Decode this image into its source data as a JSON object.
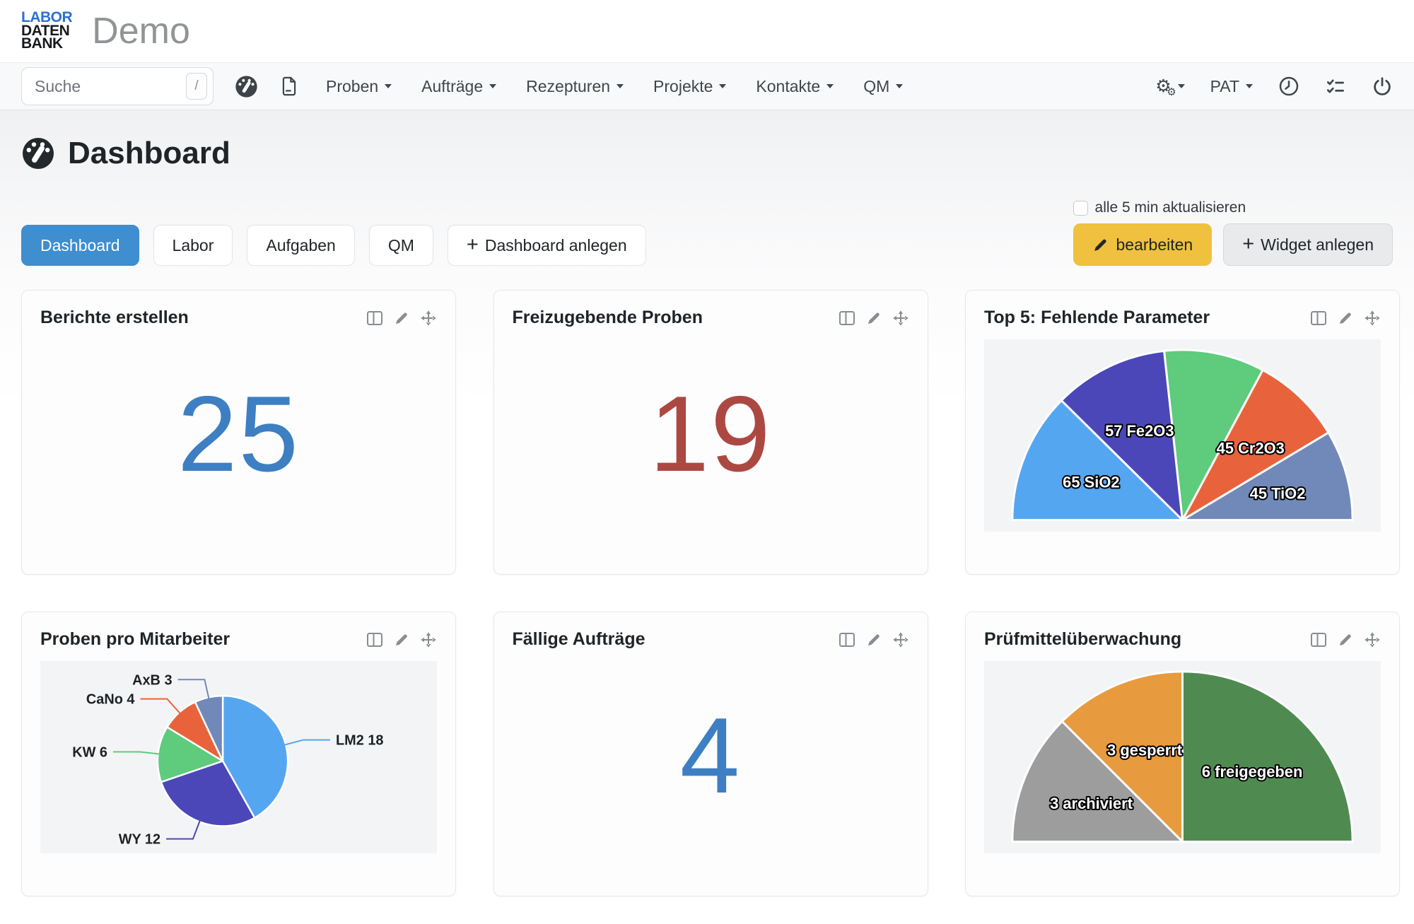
{
  "brand": {
    "line1": "LABOR",
    "line2": "DATEN",
    "line3": "BANK",
    "app_title": "Demo"
  },
  "icons": {
    "plus": "+",
    "gear": "⚙",
    "search_shortcut_key": "/"
  },
  "navbar": {
    "search": {
      "placeholder": "Suche",
      "shortcut": "/"
    },
    "menus": [
      {
        "label": "Proben"
      },
      {
        "label": "Aufträge"
      },
      {
        "label": "Rezepturen"
      },
      {
        "label": "Projekte"
      },
      {
        "label": "Kontakte"
      },
      {
        "label": "QM"
      }
    ],
    "user": "PAT"
  },
  "page": {
    "title": "Dashboard",
    "auto_refresh_label": "alle 5 min aktualisieren",
    "tabs": [
      {
        "label": "Dashboard",
        "active": true
      },
      {
        "label": "Labor",
        "active": false
      },
      {
        "label": "Aufgaben",
        "active": false
      },
      {
        "label": "QM",
        "active": false
      }
    ],
    "add_dashboard_label": "Dashboard anlegen",
    "actions": {
      "edit_label": "bearbeiten",
      "add_widget_label": "Widget anlegen"
    }
  },
  "widgets": [
    {
      "title": "Berichte erstellen",
      "type": "number",
      "value": "25",
      "color": "#3d7fc2"
    },
    {
      "title": "Freizugebende Proben",
      "type": "number",
      "value": "19",
      "color": "#ac4842"
    },
    {
      "title": "Top 5: Fehlende Parameter",
      "type": "chart",
      "chart": {
        "type": "pie",
        "shape": "half",
        "legend": "none",
        "segments": [
          {
            "label": "65 SiO2",
            "value": 65,
            "color": "#55a6f0"
          },
          {
            "label": "57 Fe2O3",
            "value": 57,
            "color": "#4b47b9"
          },
          {
            "label": "",
            "value": 50,
            "color": "#5ecb7d"
          },
          {
            "label": "45 Cr2O3",
            "value": 45,
            "color": "#e8633c"
          },
          {
            "label": "45 TiO2",
            "value": 45,
            "color": "#7189b8"
          }
        ]
      }
    },
    {
      "title": "Proben pro Mitarbeiter",
      "type": "chart",
      "chart": {
        "type": "pie",
        "shape": "full",
        "legend": "outside-leader-lines",
        "segments": [
          {
            "label": "LM2 18",
            "value": 18,
            "color": "#55a6f0"
          },
          {
            "label": "WY 12",
            "value": 12,
            "color": "#4b47b9"
          },
          {
            "label": "KW 6",
            "value": 6,
            "color": "#5ecb7d"
          },
          {
            "label": "CaNo 4",
            "value": 4,
            "color": "#e8633c"
          },
          {
            "label": "AxB 3",
            "value": 3,
            "color": "#7189b8"
          }
        ]
      }
    },
    {
      "title": "Fällige Aufträge",
      "type": "number",
      "value": "4",
      "color": "#3d7fc2"
    },
    {
      "title": "Prüfmittelüberwachung",
      "type": "chart",
      "chart": {
        "type": "pie",
        "shape": "half",
        "legend": "none",
        "segments": [
          {
            "label": "3 archiviert",
            "value": 3,
            "color": "#9d9d9d"
          },
          {
            "label": "3 gesperrt",
            "value": 3,
            "color": "#e89b3e"
          },
          {
            "label": "6 freigegeben",
            "value": 6,
            "color": "#4f8b51"
          }
        ]
      }
    }
  ]
}
